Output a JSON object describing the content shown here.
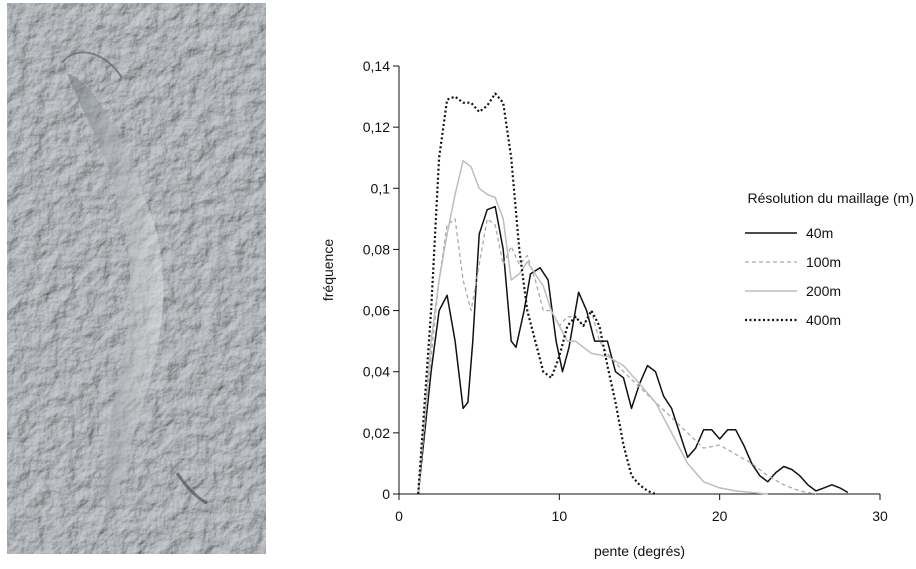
{
  "relief_image": {
    "description_icon": "hillshade-relief-icon",
    "base_color": "#9aa0a6"
  },
  "chart_data": {
    "type": "line",
    "xlabel": "pente (degrés)",
    "ylabel": "fréquence",
    "xlim": [
      0,
      30
    ],
    "ylim": [
      0,
      0.14
    ],
    "x_ticks": [
      "0",
      "10",
      "20",
      "30"
    ],
    "y_ticks": [
      "0",
      "0,02",
      "0,04",
      "0,06",
      "0,08",
      "0,1",
      "0,12",
      "0,14"
    ],
    "grid": false,
    "legend_title": "Résolution du maillage (m)",
    "legend_position": "right",
    "series": [
      {
        "name": "40m",
        "style": "solid",
        "color": "#111111",
        "points": [
          [
            1.2,
            0
          ],
          [
            2,
            0.04
          ],
          [
            2.5,
            0.06
          ],
          [
            3,
            0.065
          ],
          [
            3.5,
            0.05
          ],
          [
            4,
            0.028
          ],
          [
            4.3,
            0.03
          ],
          [
            4.6,
            0.05
          ],
          [
            5,
            0.085
          ],
          [
            5.5,
            0.093
          ],
          [
            6,
            0.094
          ],
          [
            6.5,
            0.08
          ],
          [
            7,
            0.05
          ],
          [
            7.3,
            0.048
          ],
          [
            7.8,
            0.06
          ],
          [
            8.2,
            0.072
          ],
          [
            8.8,
            0.074
          ],
          [
            9.3,
            0.07
          ],
          [
            9.8,
            0.05
          ],
          [
            10.2,
            0.04
          ],
          [
            10.6,
            0.048
          ],
          [
            11.2,
            0.066
          ],
          [
            11.7,
            0.06
          ],
          [
            12.2,
            0.05
          ],
          [
            13,
            0.05
          ],
          [
            13.5,
            0.04
          ],
          [
            14,
            0.038
          ],
          [
            14.5,
            0.028
          ],
          [
            15,
            0.036
          ],
          [
            15.5,
            0.042
          ],
          [
            16,
            0.04
          ],
          [
            16.5,
            0.032
          ],
          [
            17,
            0.028
          ],
          [
            17.5,
            0.02
          ],
          [
            18,
            0.012
          ],
          [
            18.5,
            0.015
          ],
          [
            19,
            0.021
          ],
          [
            19.5,
            0.021
          ],
          [
            20,
            0.018
          ],
          [
            20.5,
            0.021
          ],
          [
            21,
            0.021
          ],
          [
            21.5,
            0.016
          ],
          [
            22,
            0.01
          ],
          [
            22.5,
            0.006
          ],
          [
            23,
            0.004
          ],
          [
            23.5,
            0.007
          ],
          [
            24,
            0.009
          ],
          [
            24.5,
            0.008
          ],
          [
            25,
            0.006
          ],
          [
            25.5,
            0.003
          ],
          [
            26,
            0.001
          ],
          [
            26.5,
            0.002
          ],
          [
            27,
            0.003
          ],
          [
            27.5,
            0.002
          ],
          [
            28,
            0.0005
          ]
        ]
      },
      {
        "name": "100m",
        "style": "dashed",
        "color": "#aaaaaa",
        "points": [
          [
            1.2,
            0
          ],
          [
            2,
            0.045
          ],
          [
            2.5,
            0.07
          ],
          [
            3,
            0.088
          ],
          [
            3.5,
            0.09
          ],
          [
            4,
            0.07
          ],
          [
            4.5,
            0.06
          ],
          [
            5,
            0.075
          ],
          [
            5.5,
            0.09
          ],
          [
            6,
            0.088
          ],
          [
            6.5,
            0.075
          ],
          [
            7,
            0.081
          ],
          [
            7.5,
            0.075
          ],
          [
            8,
            0.078
          ],
          [
            8.5,
            0.07
          ],
          [
            9,
            0.06
          ],
          [
            9.5,
            0.06
          ],
          [
            10,
            0.055
          ],
          [
            10.5,
            0.058
          ],
          [
            11,
            0.058
          ],
          [
            11.5,
            0.055
          ],
          [
            12,
            0.06
          ],
          [
            12.5,
            0.05
          ],
          [
            13,
            0.046
          ],
          [
            14,
            0.04
          ],
          [
            15,
            0.035
          ],
          [
            16,
            0.03
          ],
          [
            17,
            0.025
          ],
          [
            18,
            0.02
          ],
          [
            19,
            0.015
          ],
          [
            20,
            0.016
          ],
          [
            21,
            0.013
          ],
          [
            22,
            0.01
          ],
          [
            23,
            0.006
          ],
          [
            24,
            0.003
          ],
          [
            25,
            0.001
          ],
          [
            26,
            0
          ]
        ]
      },
      {
        "name": "200m",
        "style": "solid",
        "color": "#bdbdbd",
        "points": [
          [
            1.2,
            0
          ],
          [
            2,
            0.05
          ],
          [
            2.5,
            0.07
          ],
          [
            3,
            0.085
          ],
          [
            3.5,
            0.098
          ],
          [
            4,
            0.109
          ],
          [
            4.5,
            0.107
          ],
          [
            5,
            0.1
          ],
          [
            5.5,
            0.098
          ],
          [
            6,
            0.097
          ],
          [
            6.5,
            0.09
          ],
          [
            7,
            0.07
          ],
          [
            7.5,
            0.072
          ],
          [
            8,
            0.076
          ],
          [
            8.5,
            0.072
          ],
          [
            9,
            0.068
          ],
          [
            9.5,
            0.06
          ],
          [
            10,
            0.055
          ],
          [
            10.5,
            0.05
          ],
          [
            11,
            0.05
          ],
          [
            11.5,
            0.048
          ],
          [
            12,
            0.046
          ],
          [
            13,
            0.045
          ],
          [
            14,
            0.042
          ],
          [
            15,
            0.036
          ],
          [
            16,
            0.03
          ],
          [
            17,
            0.02
          ],
          [
            18,
            0.01
          ],
          [
            19,
            0.004
          ],
          [
            20,
            0.002
          ],
          [
            21,
            0.001
          ],
          [
            22,
            0.0005
          ],
          [
            23,
            0
          ]
        ]
      },
      {
        "name": "400m",
        "style": "dotted",
        "color": "#111111",
        "points": [
          [
            1.2,
            0
          ],
          [
            2,
            0.06
          ],
          [
            2.5,
            0.11
          ],
          [
            3,
            0.129
          ],
          [
            3.5,
            0.13
          ],
          [
            4,
            0.128
          ],
          [
            4.5,
            0.128
          ],
          [
            5,
            0.125
          ],
          [
            5.5,
            0.127
          ],
          [
            6,
            0.131
          ],
          [
            6.5,
            0.128
          ],
          [
            7,
            0.11
          ],
          [
            7.5,
            0.08
          ],
          [
            8,
            0.06
          ],
          [
            8.5,
            0.05
          ],
          [
            9,
            0.04
          ],
          [
            9.5,
            0.038
          ],
          [
            10,
            0.045
          ],
          [
            10.5,
            0.055
          ],
          [
            11,
            0.058
          ],
          [
            11.5,
            0.055
          ],
          [
            12,
            0.06
          ],
          [
            12.5,
            0.055
          ],
          [
            13,
            0.042
          ],
          [
            13.5,
            0.03
          ],
          [
            14,
            0.016
          ],
          [
            14.5,
            0.006
          ],
          [
            15,
            0.003
          ],
          [
            15.5,
            0.001
          ],
          [
            16,
            0
          ]
        ]
      }
    ]
  }
}
